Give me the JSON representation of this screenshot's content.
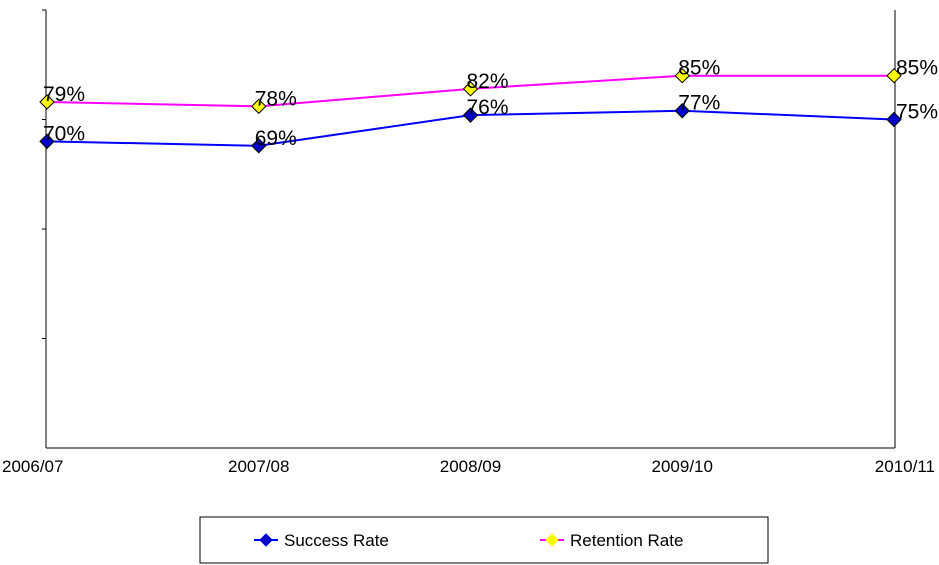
{
  "chart_data": {
    "type": "line",
    "categories": [
      "2006/07",
      "2007/08",
      "2008/09",
      "2009/10",
      "2010/11"
    ],
    "series": [
      {
        "name": "Success Rate",
        "values": [
          70,
          69,
          76,
          77,
          75
        ],
        "labels": [
          "70%",
          "69%",
          "76%",
          "77%",
          "75%"
        ],
        "line_color": "#0000FF",
        "marker_color": "#0000CC",
        "marker": "diamond"
      },
      {
        "name": "Retention Rate",
        "values": [
          79,
          78,
          82,
          85,
          85
        ],
        "labels": [
          "79%",
          "78%",
          "82%",
          "85%",
          "85%"
        ],
        "line_color": "#FF00FF",
        "marker_color": "#FFFF00",
        "marker": "diamond"
      }
    ],
    "ylim": [
      0,
      100
    ],
    "grid": false,
    "legend_position": "bottom"
  }
}
